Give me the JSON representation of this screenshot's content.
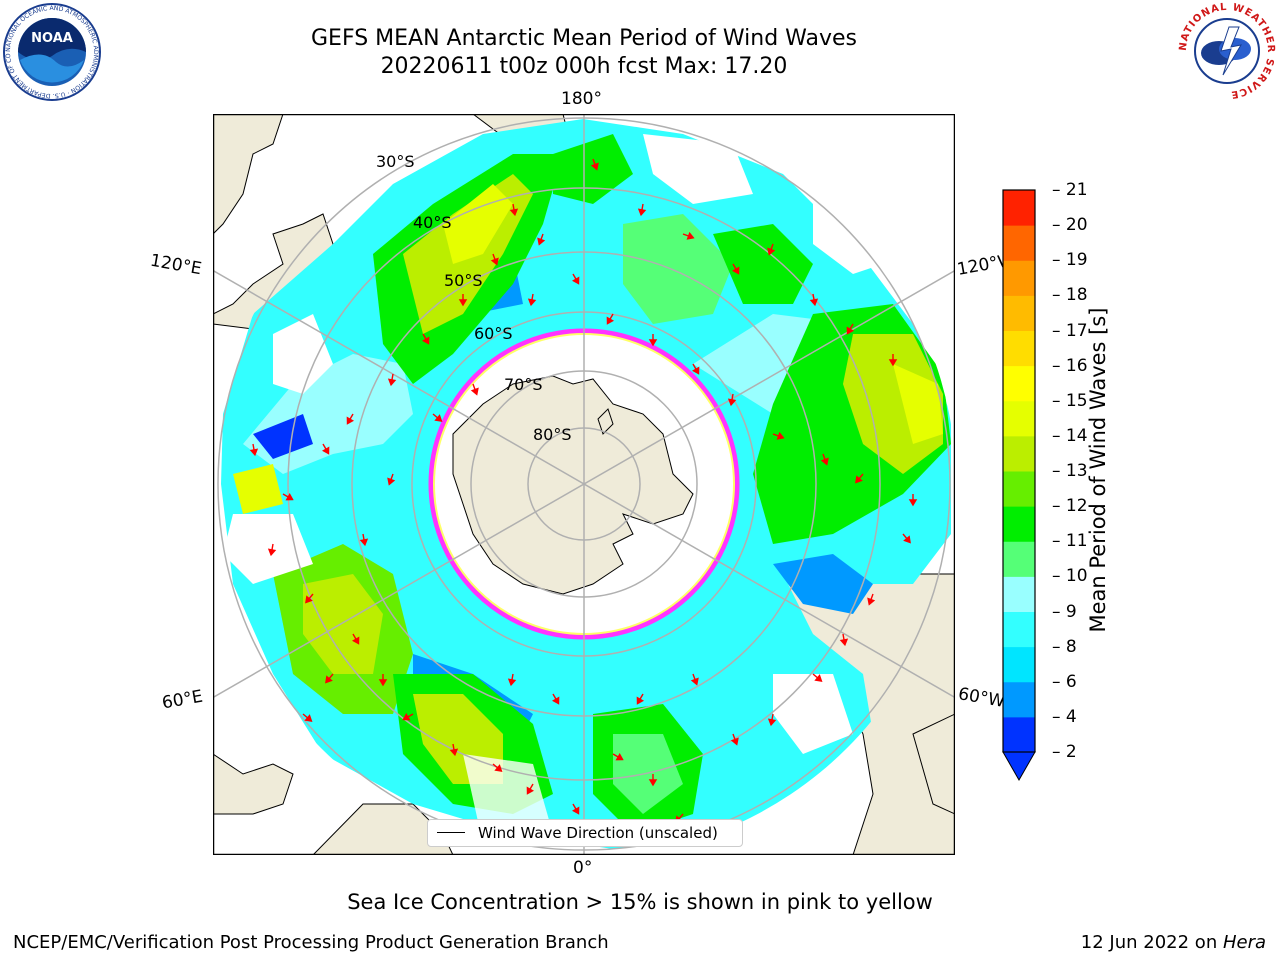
{
  "title": {
    "line1": "GEFS MEAN Antarctic Mean Period of Wind Waves",
    "line2": "20220611 t00z 000h fcst   Max: 17.20"
  },
  "map": {
    "projection": "south-polar-stereographic",
    "lon_labels": [
      "180°",
      "120°E",
      "120°W",
      "60°E",
      "60°W",
      "0°"
    ],
    "lat_labels": [
      "30°S",
      "40°S",
      "50°S",
      "60°S",
      "70°S",
      "80°S"
    ],
    "land_color": "#efebd9",
    "grid_color": "#b0b0b0",
    "sea_ice_colors": [
      "#ff33ff",
      "#ffff66",
      "#ffcc66"
    ]
  },
  "legend": {
    "label": "Wind Wave Direction (unscaled)"
  },
  "colorbar": {
    "label": "Mean Period of Wind Waves [s]",
    "ticks": [
      "2",
      "4",
      "6",
      "8",
      "9",
      "10",
      "11",
      "12",
      "13",
      "14",
      "15",
      "16",
      "17",
      "18",
      "19",
      "20",
      "21"
    ],
    "colors": [
      "#0033ff",
      "#0099ff",
      "#00e5ff",
      "#33ffff",
      "#99ffff",
      "#55ff77",
      "#00ee00",
      "#66ee00",
      "#bbee00",
      "#e5ff00",
      "#ffff00",
      "#ffdd00",
      "#ffbb00",
      "#ff9900",
      "#ff6600",
      "#ff2200",
      "#ff0000"
    ],
    "extend": "min"
  },
  "caption": "Sea Ice Concentration > 15% is shown in pink to yellow",
  "footer": {
    "left": "NCEP/EMC/Verification Post Processing Product Generation Branch",
    "date": "12 Jun 2022 on ",
    "host": "Hera"
  },
  "logos": {
    "noaa": "NOAA",
    "noaa_ring": "NATIONAL OCEANIC AND ATMOSPHERIC ADMINISTRATION · U.S. DEPARTMENT OF COMMERCE",
    "nws_ring": "NATIONAL WEATHER SERVICE"
  }
}
